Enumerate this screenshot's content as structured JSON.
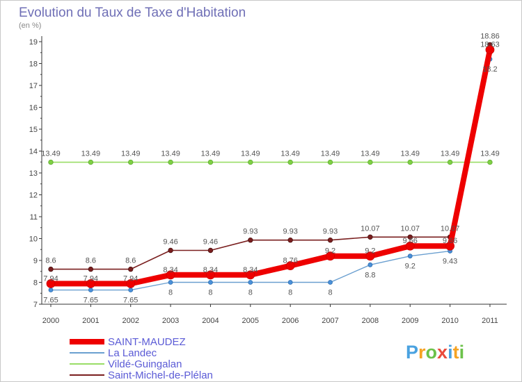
{
  "title": "Evolution du Taux de Taxe d'Habitation",
  "subtitle": "(en %)",
  "brand": {
    "letters": [
      "P",
      "r",
      "o",
      "x",
      "i",
      "t",
      "i"
    ],
    "colors": [
      "#4aa2e0",
      "#f6a323",
      "#6cc24a",
      "#e94b3c",
      "#4aa2e0",
      "#f6a323",
      "#6cc24a"
    ]
  },
  "chart_data": {
    "type": "line",
    "title": "Evolution du Taux de Taxe d'Habitation",
    "ylabel": "(en %)",
    "xlabel": "",
    "x": [
      "2000",
      "2001",
      "2002",
      "2003",
      "2004",
      "2005",
      "2006",
      "2007",
      "2008",
      "2009",
      "2010",
      "2011"
    ],
    "ylim": [
      7,
      19
    ],
    "yticks": [
      "7",
      "8",
      "9",
      "10",
      "11",
      "12",
      "13",
      "14",
      "15",
      "16",
      "17",
      "18",
      "19"
    ],
    "grid": false,
    "legend_position": "bottom-left",
    "series": [
      {
        "name": "Saint-Michel-de-Plélan",
        "color": "#7a1f1f",
        "values": [
          8.6,
          8.6,
          8.6,
          9.46,
          9.46,
          9.93,
          9.93,
          9.93,
          10.07,
          10.07,
          10.07,
          18.86
        ],
        "labels": [
          "8.6",
          "8.6",
          "8.6",
          "9.46",
          "9.46",
          "9.93",
          "9.93",
          "9.93",
          "10.07",
          "10.07",
          "10.07",
          "18.86"
        ]
      },
      {
        "name": "Vildé-Guingalan",
        "color": "#99dd66",
        "values": [
          13.49,
          13.49,
          13.49,
          13.49,
          13.49,
          13.49,
          13.49,
          13.49,
          13.49,
          13.49,
          13.49,
          13.49
        ],
        "labels": [
          "13.49",
          "13.49",
          "13.49",
          "13.49",
          "13.49",
          "13.49",
          "13.49",
          "13.49",
          "13.49",
          "13.49",
          "13.49",
          "13.49"
        ]
      },
      {
        "name": "La Landec",
        "color": "#6a9fd0",
        "values": [
          7.65,
          7.65,
          7.65,
          8,
          8,
          8,
          8,
          8,
          8.8,
          9.2,
          9.43,
          18.2
        ],
        "labels": [
          "7.65",
          "7.65",
          "7.65",
          "8",
          "8",
          "8",
          "8",
          "8",
          "8.8",
          "9.2",
          "9.43",
          "18.2"
        ]
      },
      {
        "name": "SAINT-MAUDEZ",
        "color": "#ee0000",
        "values": [
          7.94,
          7.94,
          7.94,
          8.34,
          8.34,
          8.34,
          8.76,
          9.2,
          9.2,
          9.66,
          9.66,
          18.63
        ],
        "labels": [
          "7.94",
          "7.94",
          "7.94",
          "8.34",
          "8.34",
          "8.34",
          "8.76",
          "9.2",
          "9.2",
          "9.66",
          "9.66",
          "18.63"
        ]
      }
    ],
    "legend": [
      "SAINT-MAUDEZ",
      "La Landec",
      "Vildé-Guingalan",
      "Saint-Michel-de-Plélan"
    ]
  }
}
